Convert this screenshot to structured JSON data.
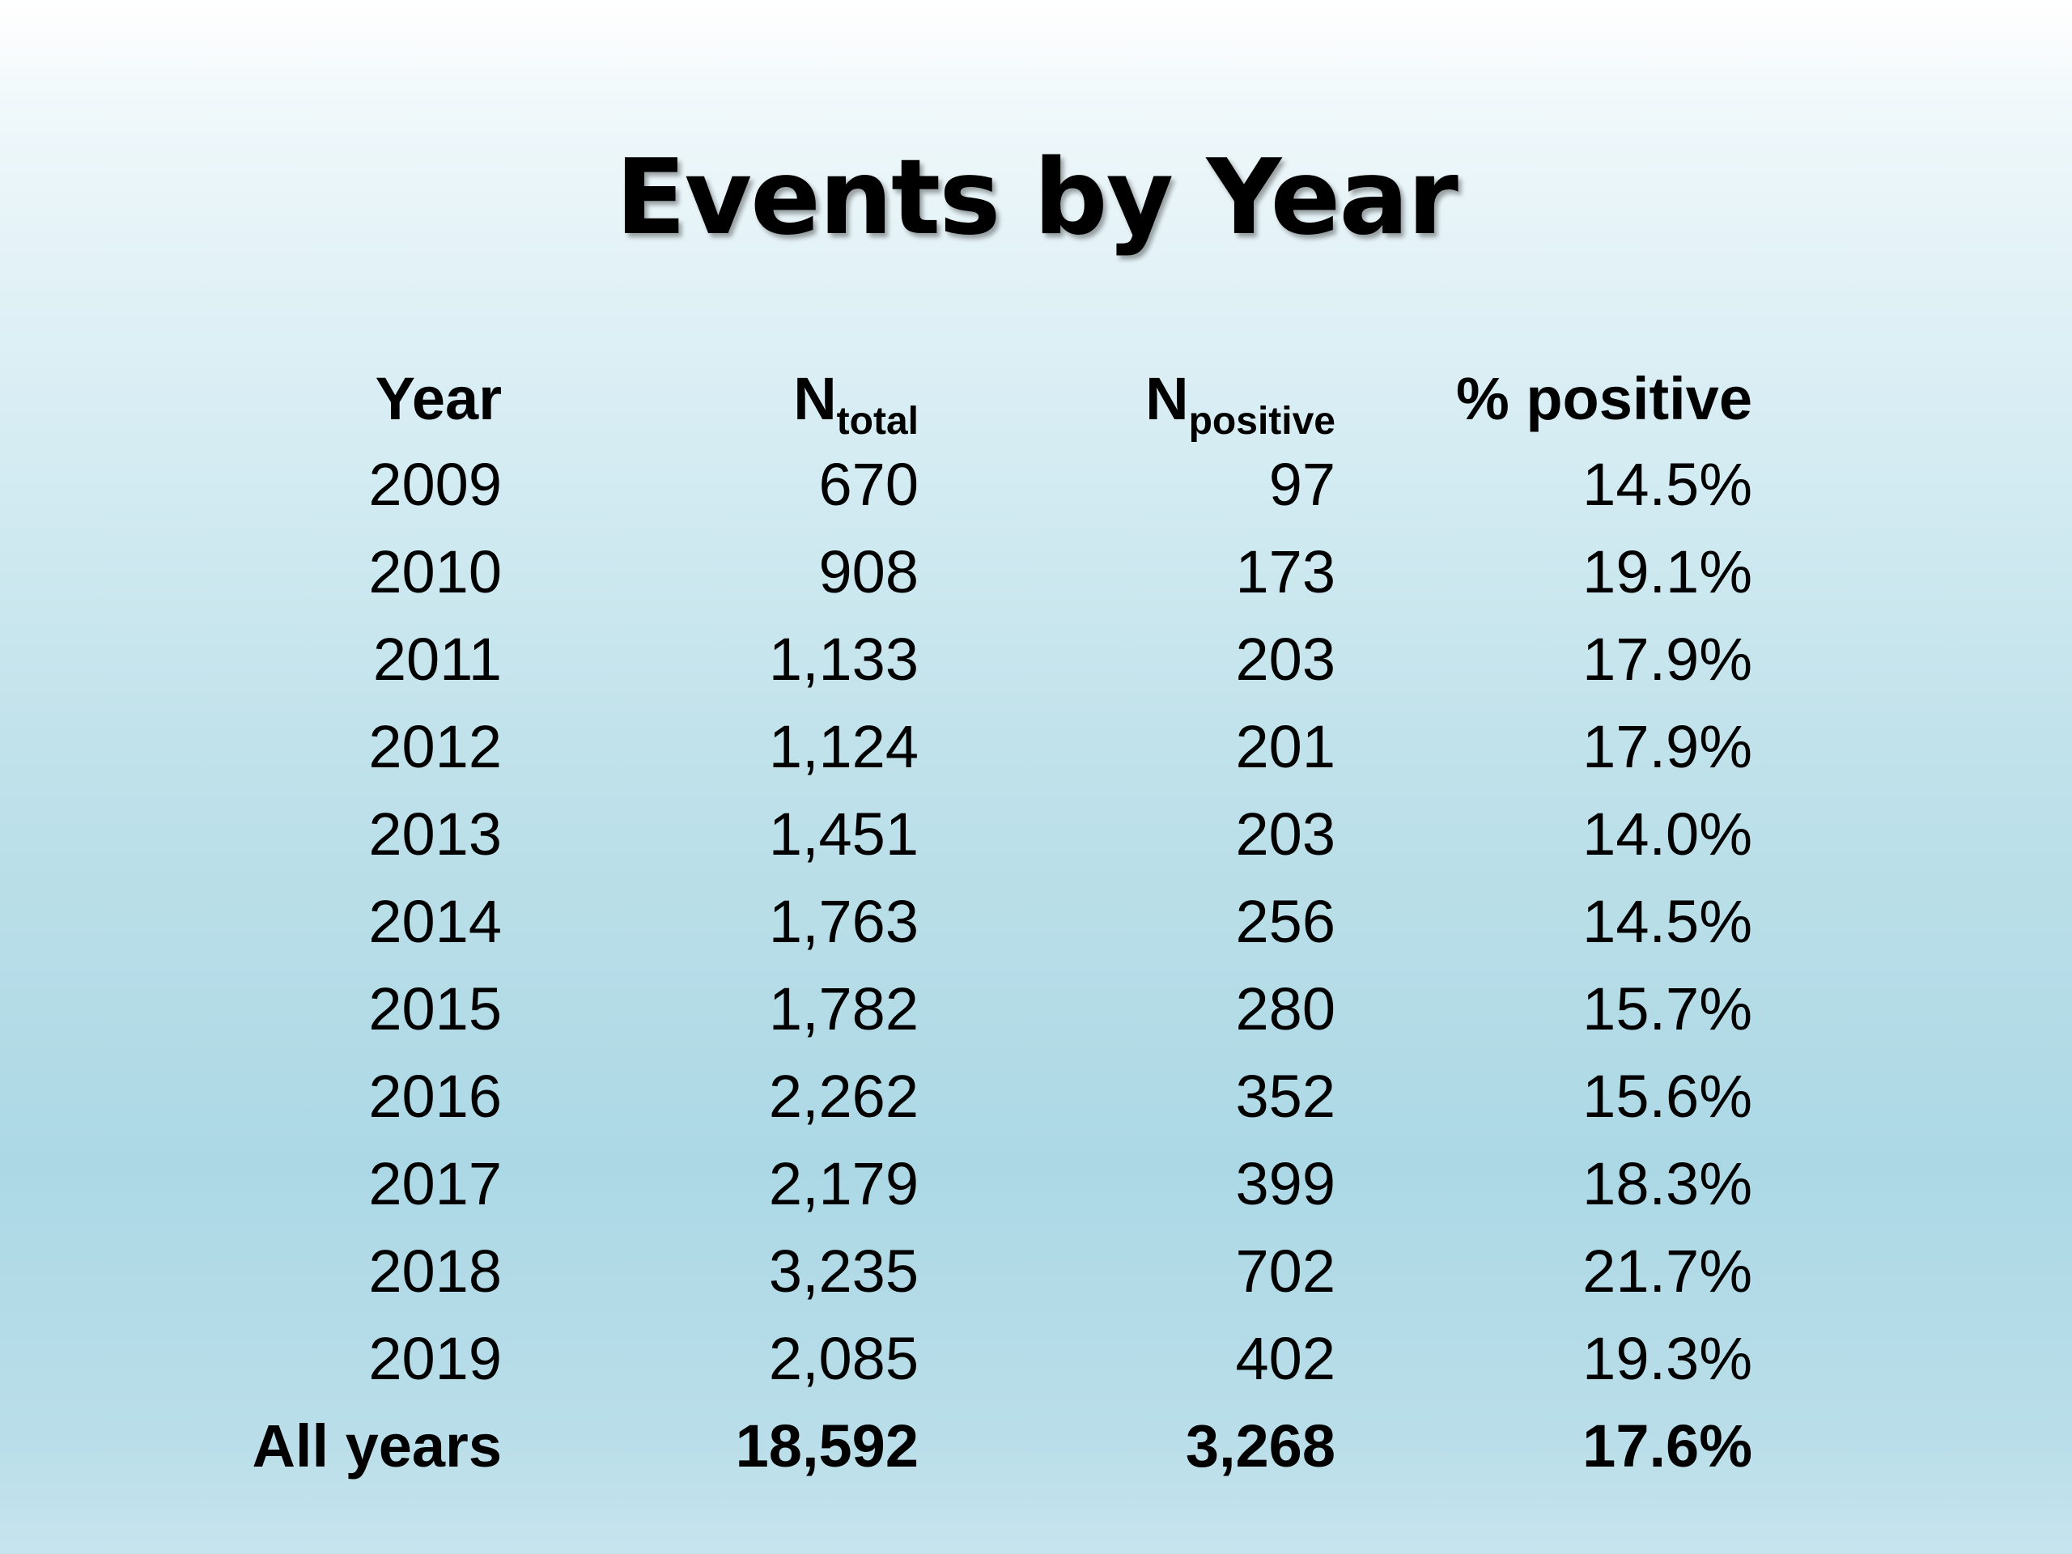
{
  "slide": {
    "title": "Events by Year"
  },
  "table": {
    "headers": {
      "year": "Year",
      "n_total_main": "N",
      "n_total_sub": "total",
      "n_positive_main": "N",
      "n_positive_sub": "positive",
      "pct_positive": "% positive"
    },
    "rows": [
      {
        "year": "2009",
        "n_total": "670",
        "n_positive": "97",
        "pct_positive": "14.5%"
      },
      {
        "year": "2010",
        "n_total": "908",
        "n_positive": "173",
        "pct_positive": "19.1%"
      },
      {
        "year": "2011",
        "n_total": "1,133",
        "n_positive": "203",
        "pct_positive": "17.9%"
      },
      {
        "year": "2012",
        "n_total": "1,124",
        "n_positive": "201",
        "pct_positive": "17.9%"
      },
      {
        "year": "2013",
        "n_total": "1,451",
        "n_positive": "203",
        "pct_positive": "14.0%"
      },
      {
        "year": "2014",
        "n_total": "1,763",
        "n_positive": "256",
        "pct_positive": "14.5%"
      },
      {
        "year": "2015",
        "n_total": "1,782",
        "n_positive": "280",
        "pct_positive": "15.7%"
      },
      {
        "year": "2016",
        "n_total": "2,262",
        "n_positive": "352",
        "pct_positive": "15.6%"
      },
      {
        "year": "2017",
        "n_total": "2,179",
        "n_positive": "399",
        "pct_positive": "18.3%"
      },
      {
        "year": "2018",
        "n_total": "3,235",
        "n_positive": "702",
        "pct_positive": "21.7%"
      },
      {
        "year": "2019",
        "n_total": "2,085",
        "n_positive": "402",
        "pct_positive": "19.3%"
      }
    ],
    "total": {
      "year": "All years",
      "n_total": "18,592",
      "n_positive": "3,268",
      "pct_positive": "17.6%"
    }
  }
}
